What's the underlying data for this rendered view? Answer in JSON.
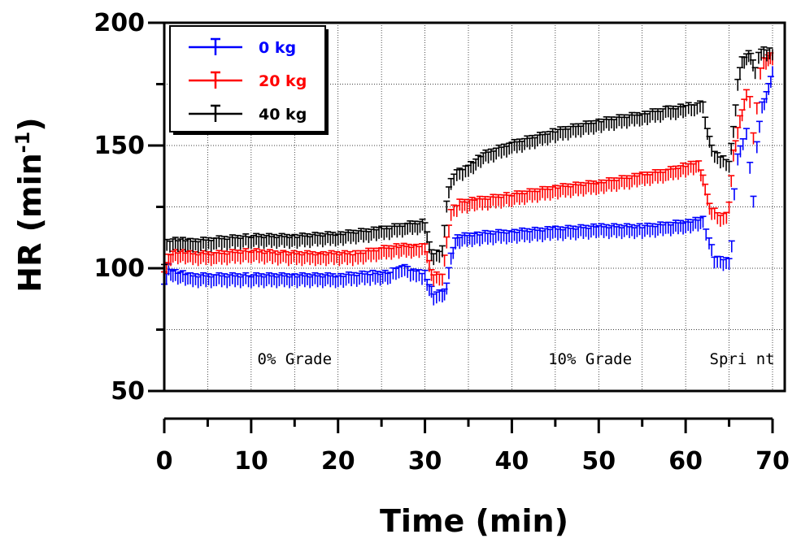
{
  "chart_data": {
    "type": "line",
    "title": "",
    "xlabel": "Time (min)",
    "ylabel_main": "HR (min",
    "ylabel_sup": "-1",
    "ylabel_close": ")",
    "xlim": [
      0,
      70
    ],
    "ylim": [
      50,
      200
    ],
    "xticks": [
      0,
      10,
      20,
      30,
      40,
      50,
      60,
      70
    ],
    "yticks": [
      50,
      100,
      150,
      200
    ],
    "grid": true,
    "legend_position": "top-left",
    "annotations": [
      {
        "text": "0% Grade",
        "x": 15,
        "y": 61
      },
      {
        "text": "10% Grade",
        "x": 49,
        "y": 61
      },
      {
        "text": "Spri nt",
        "x": 66.5,
        "y": 61
      }
    ],
    "series": [
      {
        "name": "0 kg",
        "color": "#0000ff",
        "points": [
          [
            0,
            92
          ],
          [
            0.5,
            99
          ],
          [
            1,
            97
          ],
          [
            3,
            95
          ],
          [
            6,
            95
          ],
          [
            10,
            95
          ],
          [
            15,
            95
          ],
          [
            20,
            95
          ],
          [
            24,
            96
          ],
          [
            26,
            96
          ],
          [
            27,
            99
          ],
          [
            28,
            98
          ],
          [
            29,
            97
          ],
          [
            30,
            96
          ],
          [
            30.5,
            91
          ],
          [
            31,
            88
          ],
          [
            32,
            88
          ],
          [
            32.5,
            92
          ],
          [
            33,
            103
          ],
          [
            33.5,
            110
          ],
          [
            34,
            111
          ],
          [
            36,
            112
          ],
          [
            40,
            113
          ],
          [
            45,
            114
          ],
          [
            50,
            115
          ],
          [
            55,
            115
          ],
          [
            58,
            116
          ],
          [
            60,
            117
          ],
          [
            62,
            118
          ],
          [
            62.7,
            110
          ],
          [
            63.3,
            103
          ],
          [
            64,
            102
          ],
          [
            65,
            102
          ],
          [
            65.3,
            108
          ],
          [
            65.6,
            130
          ],
          [
            66,
            145
          ],
          [
            66.6,
            150
          ],
          [
            67,
            155
          ],
          [
            67.4,
            140
          ],
          [
            67.8,
            127
          ],
          [
            68.2,
            150
          ],
          [
            68.8,
            165
          ],
          [
            69.3,
            170
          ],
          [
            69.8,
            175
          ],
          [
            70,
            180
          ]
        ]
      },
      {
        "name": "20 kg",
        "color": "#ff0000",
        "points": [
          [
            0,
            97
          ],
          [
            0.5,
            103
          ],
          [
            1,
            105
          ],
          [
            3,
            104
          ],
          [
            6,
            104
          ],
          [
            10,
            105
          ],
          [
            14,
            104
          ],
          [
            18,
            104
          ],
          [
            22,
            104
          ],
          [
            25,
            106
          ],
          [
            27,
            107
          ],
          [
            29,
            107
          ],
          [
            30,
            108
          ],
          [
            30.5,
            100
          ],
          [
            31,
            95
          ],
          [
            32,
            96
          ],
          [
            32.5,
            110
          ],
          [
            33,
            122
          ],
          [
            34,
            125
          ],
          [
            36,
            126
          ],
          [
            40,
            128
          ],
          [
            45,
            131
          ],
          [
            50,
            133
          ],
          [
            55,
            136
          ],
          [
            58,
            138
          ],
          [
            60,
            140
          ],
          [
            61.5,
            141
          ],
          [
            62,
            136
          ],
          [
            62.5,
            127
          ],
          [
            63,
            122
          ],
          [
            64,
            120
          ],
          [
            64.7,
            120
          ],
          [
            65,
            125
          ],
          [
            65.5,
            145
          ],
          [
            66,
            155
          ],
          [
            66.5,
            163
          ],
          [
            67,
            170
          ],
          [
            67.4,
            168
          ],
          [
            67.8,
            152
          ],
          [
            68.2,
            165
          ],
          [
            68.6,
            180
          ],
          [
            69,
            183
          ],
          [
            69.5,
            185
          ],
          [
            70,
            185
          ]
        ]
      },
      {
        "name": "40 kg",
        "color": "#000000",
        "points": [
          [
            0,
            100
          ],
          [
            0.3,
            109
          ],
          [
            1,
            110
          ],
          [
            3,
            109
          ],
          [
            6,
            110
          ],
          [
            10,
            111
          ],
          [
            15,
            111
          ],
          [
            20,
            112
          ],
          [
            25,
            114
          ],
          [
            28,
            116
          ],
          [
            30,
            117
          ],
          [
            30.5,
            108
          ],
          [
            31,
            104
          ],
          [
            32,
            106
          ],
          [
            32.5,
            125
          ],
          [
            33,
            135
          ],
          [
            34,
            138
          ],
          [
            35,
            140
          ],
          [
            37,
            145
          ],
          [
            40,
            149
          ],
          [
            45,
            154
          ],
          [
            50,
            158
          ],
          [
            55,
            161
          ],
          [
            58,
            163
          ],
          [
            60,
            164
          ],
          [
            61,
            165
          ],
          [
            62,
            165
          ],
          [
            62.5,
            155
          ],
          [
            63,
            147
          ],
          [
            64,
            143
          ],
          [
            65,
            142
          ],
          [
            65.5,
            155
          ],
          [
            66,
            175
          ],
          [
            66.5,
            183
          ],
          [
            67,
            185
          ],
          [
            67.5,
            186
          ],
          [
            68,
            179
          ],
          [
            68.4,
            186
          ],
          [
            69,
            187
          ],
          [
            70,
            187
          ]
        ]
      }
    ]
  }
}
